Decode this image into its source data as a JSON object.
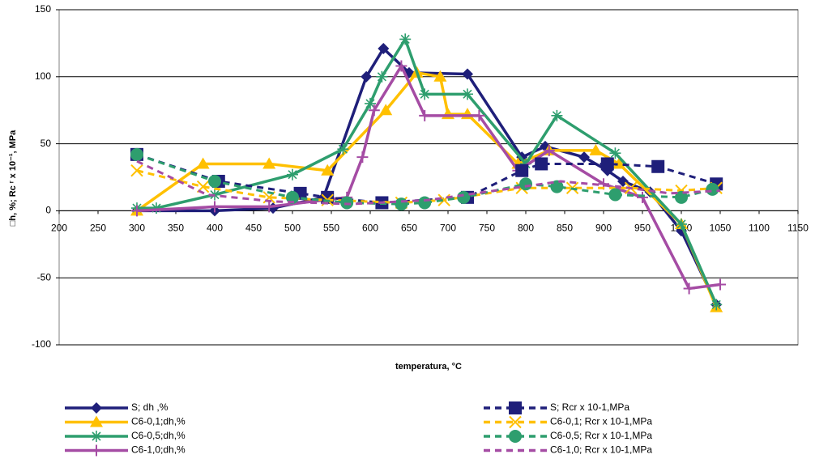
{
  "chart_data": {
    "type": "line",
    "x_label": "temperatura, °C",
    "y_label": "□h, %; Rc ʳ x 10⁻¹, MPa",
    "xlim": [
      200,
      1150
    ],
    "xticks": [
      200,
      250,
      300,
      350,
      400,
      450,
      500,
      550,
      600,
      650,
      700,
      750,
      800,
      850,
      900,
      950,
      1000,
      1050,
      1100,
      1150
    ],
    "ylim": [
      -100,
      150
    ],
    "yticks": [
      -100,
      -50,
      0,
      50,
      100,
      150
    ],
    "grid": true,
    "series": [
      {
        "name": "S; dh ,%",
        "color": "#1F1F7A",
        "dashed": false,
        "marker": "diamond",
        "x": [
          300,
          400,
          475,
          540,
          595,
          617,
          650,
          725,
          795,
          825,
          875,
          905,
          925,
          960,
          1000,
          1045
        ],
        "values": [
          0,
          0,
          2,
          10,
          100,
          121,
          103,
          102,
          40,
          48,
          40,
          30,
          22,
          14,
          -15,
          -70
        ]
      },
      {
        "name": "C6-0,1;dh,%",
        "color": "#FFC000",
        "dashed": false,
        "marker": "triangle",
        "x": [
          300,
          385,
          470,
          545,
          620,
          660,
          690,
          700,
          725,
          790,
          830,
          890,
          920,
          1000,
          1045
        ],
        "values": [
          0,
          35,
          35,
          30,
          75,
          103,
          100,
          72,
          72,
          35,
          45,
          45,
          35,
          -10,
          -72
        ]
      },
      {
        "name": "C6-0,5;dh,%",
        "color": "#2E9E6E",
        "dashed": false,
        "marker": "asterisk",
        "x": [
          300,
          325,
          400,
          500,
          565,
          600,
          615,
          645,
          670,
          725,
          800,
          840,
          915,
          1000,
          1045
        ],
        "values": [
          2,
          2,
          12,
          27,
          46,
          80,
          100,
          128,
          87,
          87,
          35,
          71,
          43,
          -10,
          -70
        ]
      },
      {
        "name": "C6-1,0;dh,%",
        "color": "#A54CA4",
        "dashed": false,
        "marker": "plus",
        "x": [
          300,
          400,
          470,
          570,
          590,
          605,
          640,
          670,
          740,
          790,
          830,
          900,
          950,
          1010,
          1050
        ],
        "values": [
          0,
          3,
          3,
          10,
          40,
          75,
          108,
          71,
          71,
          30,
          45,
          20,
          10,
          -58,
          -55
        ]
      },
      {
        "name": "S; Rcr x 10-1,MPa",
        "color": "#1F1F7A",
        "dashed": true,
        "marker": "square",
        "x": [
          300,
          405,
          510,
          545,
          615,
          725,
          795,
          820,
          905,
          970,
          1045
        ],
        "values": [
          42,
          22,
          13,
          10,
          6,
          10,
          30,
          35,
          35,
          33,
          20
        ]
      },
      {
        "name": "C6-0,1; Rcr x 10-1,MPa",
        "color": "#FFC000",
        "dashed": true,
        "marker": "x",
        "x": [
          300,
          385,
          470,
          545,
          640,
          695,
          795,
          860,
          935,
          1000,
          1045
        ],
        "values": [
          30,
          18,
          10,
          8,
          6,
          8,
          17,
          17,
          17,
          15,
          17
        ]
      },
      {
        "name": "C6-0,5; Rcr x 10-1,MPa",
        "color": "#2E9E6E",
        "dashed": true,
        "marker": "circle",
        "x": [
          300,
          400,
          500,
          570,
          640,
          670,
          720,
          800,
          840,
          915,
          1000,
          1040
        ],
        "values": [
          42,
          22,
          10,
          6,
          5,
          6,
          10,
          20,
          18,
          12,
          10,
          16
        ]
      },
      {
        "name": "C6-1,0; Rcr x 10-1,MPa",
        "color": "#A54CA4",
        "dashed": true,
        "marker": "none",
        "x": [
          300,
          390,
          475,
          575,
          675,
          760,
          845,
          920,
          985,
          1050
        ],
        "values": [
          37,
          12,
          7,
          5,
          8,
          15,
          22,
          18,
          13,
          15
        ]
      }
    ]
  }
}
